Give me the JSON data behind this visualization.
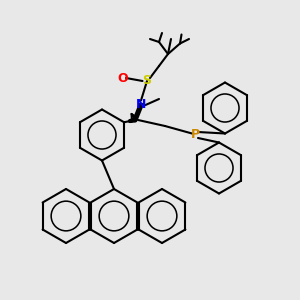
{
  "bg_color": "#e8e8e8",
  "atom_colors": {
    "S": "#cccc00",
    "O": "#ff0000",
    "N": "#0000ff",
    "P": "#cc8800",
    "C": "#000000"
  },
  "bond_color": "#000000",
  "bond_lw": 1.5,
  "title": ""
}
